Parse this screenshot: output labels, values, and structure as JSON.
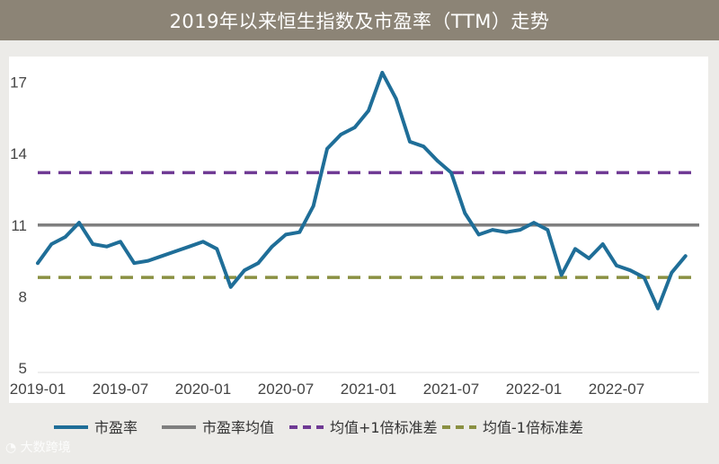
{
  "chart_data": {
    "type": "line",
    "title": "2019年以来恒生指数及市盈率（TTM）走势",
    "xlabel": "",
    "ylabel": "",
    "ylim": [
      5,
      18
    ],
    "yticks": [
      5,
      8,
      11,
      14,
      17
    ],
    "xlim": [
      "2019-01",
      "2023-01"
    ],
    "xticks": [
      "2019-01",
      "2019-07",
      "2020-01",
      "2020-07",
      "2021-01",
      "2021-07",
      "2022-01",
      "2022-07"
    ],
    "grid": false,
    "legend_position": "bottom",
    "series": [
      {
        "name": "市盈率",
        "color": "#1f6e98",
        "style": "solid",
        "points": [
          [
            "2019-01",
            9.4
          ],
          [
            "2019-02",
            10.2
          ],
          [
            "2019-03",
            10.5
          ],
          [
            "2019-04",
            11.1
          ],
          [
            "2019-05",
            10.2
          ],
          [
            "2019-06",
            10.1
          ],
          [
            "2019-07",
            10.3
          ],
          [
            "2019-08",
            9.4
          ],
          [
            "2019-09",
            9.5
          ],
          [
            "2019-10",
            9.7
          ],
          [
            "2019-11",
            9.9
          ],
          [
            "2019-12",
            10.1
          ],
          [
            "2020-01",
            10.3
          ],
          [
            "2020-02",
            10.0
          ],
          [
            "2020-03",
            8.4
          ],
          [
            "2020-04",
            9.1
          ],
          [
            "2020-05",
            9.4
          ],
          [
            "2020-06",
            10.1
          ],
          [
            "2020-07",
            10.6
          ],
          [
            "2020-08",
            10.7
          ],
          [
            "2020-09",
            11.8
          ],
          [
            "2020-10",
            14.2
          ],
          [
            "2020-11",
            14.8
          ],
          [
            "2020-12",
            15.1
          ],
          [
            "2021-01",
            15.8
          ],
          [
            "2021-02",
            17.4
          ],
          [
            "2021-03",
            16.3
          ],
          [
            "2021-04",
            14.5
          ],
          [
            "2021-05",
            14.3
          ],
          [
            "2021-06",
            13.7
          ],
          [
            "2021-07",
            13.2
          ],
          [
            "2021-08",
            11.5
          ],
          [
            "2021-09",
            10.6
          ],
          [
            "2021-10",
            10.8
          ],
          [
            "2021-11",
            10.7
          ],
          [
            "2021-12",
            10.8
          ],
          [
            "2022-01",
            11.1
          ],
          [
            "2022-02",
            10.8
          ],
          [
            "2022-03",
            8.9
          ],
          [
            "2022-04",
            10.0
          ],
          [
            "2022-05",
            9.6
          ],
          [
            "2022-06",
            10.2
          ],
          [
            "2022-07",
            9.3
          ],
          [
            "2022-08",
            9.1
          ],
          [
            "2022-09",
            8.8
          ],
          [
            "2022-10",
            7.5
          ],
          [
            "2022-11",
            9.0
          ],
          [
            "2022-12",
            9.7
          ]
        ]
      },
      {
        "name": "市盈率均值",
        "color": "#7f7f7f",
        "style": "solid",
        "value": 11.0
      },
      {
        "name": "均值+1倍标准差",
        "color": "#6f3a94",
        "style": "dashed",
        "value": 13.2
      },
      {
        "name": "均值-1倍标准差",
        "color": "#8a9042",
        "style": "dashed",
        "value": 8.8
      }
    ]
  },
  "watermark": "大数跨境"
}
